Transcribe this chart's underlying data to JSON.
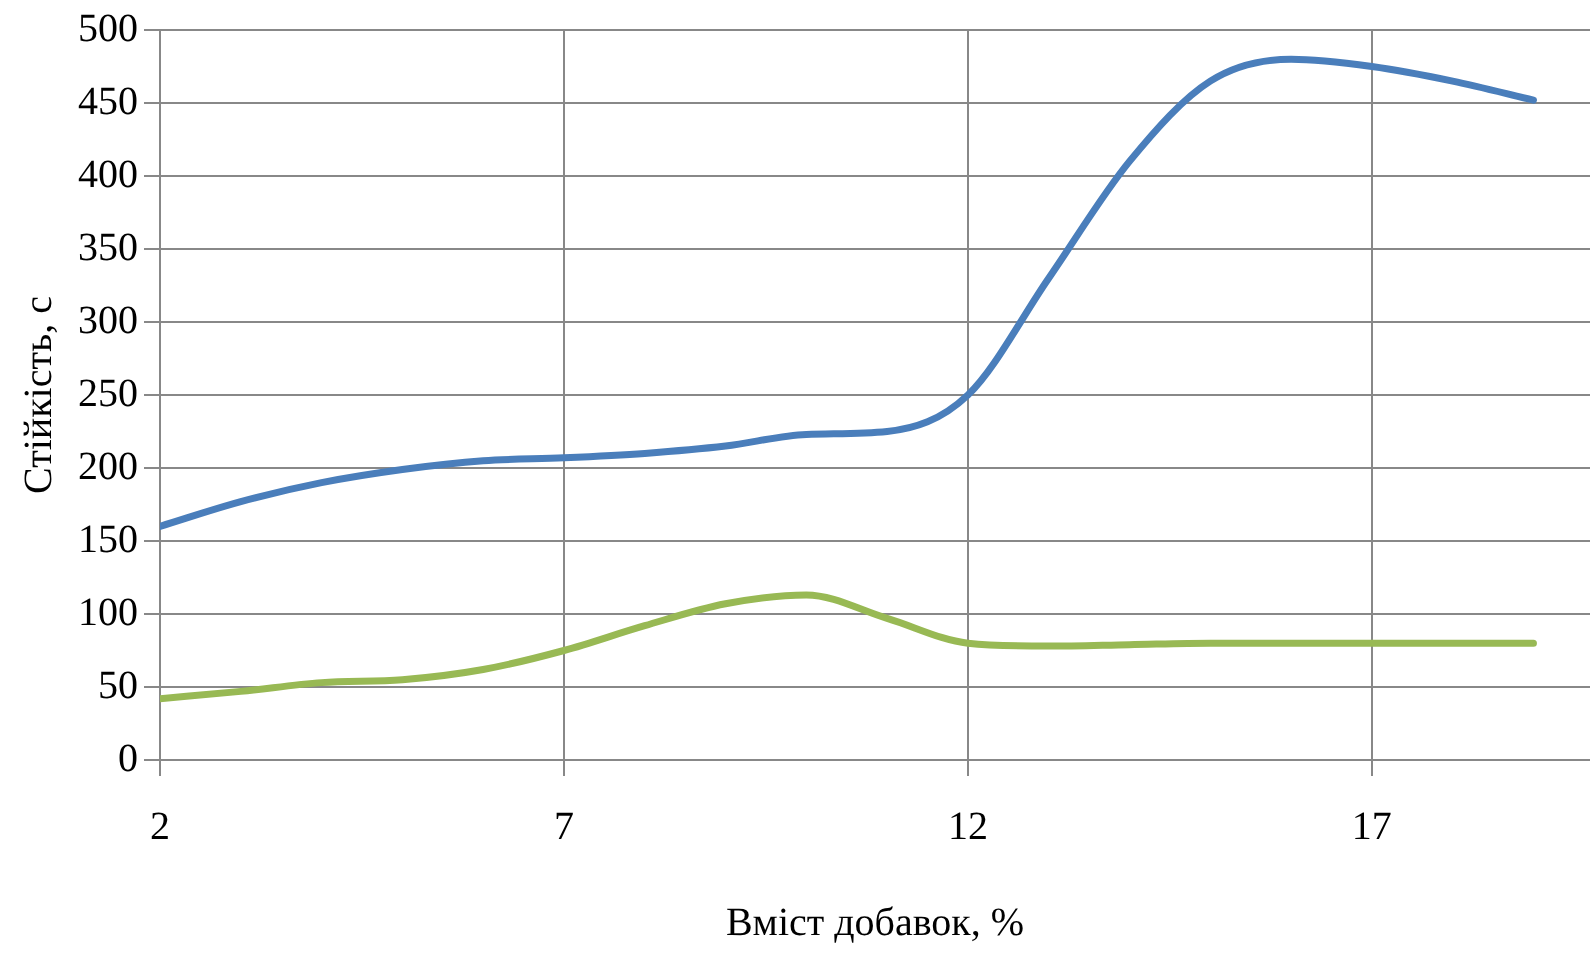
{
  "chart_data": {
    "type": "line",
    "xlabel": "Вміст добавок, %",
    "ylabel": "Стійкість, с",
    "x": [
      2,
      3,
      4,
      5,
      6,
      7,
      8,
      9,
      10,
      11,
      12,
      13,
      14,
      15,
      16,
      17,
      18,
      19
    ],
    "series": [
      {
        "color": "#4a7ebb",
        "values": [
          160,
          177,
          190,
          199,
          205,
          207,
          210,
          215,
          223,
          225,
          250,
          330,
          410,
          465,
          480,
          475,
          465,
          452
        ]
      },
      {
        "color": "#98b954",
        "values": [
          42,
          47,
          53,
          55,
          62,
          75,
          92,
          107,
          113,
          97,
          80,
          78,
          79,
          80,
          80,
          80,
          80,
          80
        ]
      }
    ],
    "xlim": [
      2,
      19.7
    ],
    "xticks": [
      2,
      7,
      12,
      17
    ],
    "ylim": [
      0,
      500
    ],
    "yticks": [
      0,
      50,
      100,
      150,
      200,
      250,
      300,
      350,
      400,
      450,
      500
    ],
    "grid": true,
    "legend": false,
    "marker": "none",
    "line_style": "solid"
  }
}
